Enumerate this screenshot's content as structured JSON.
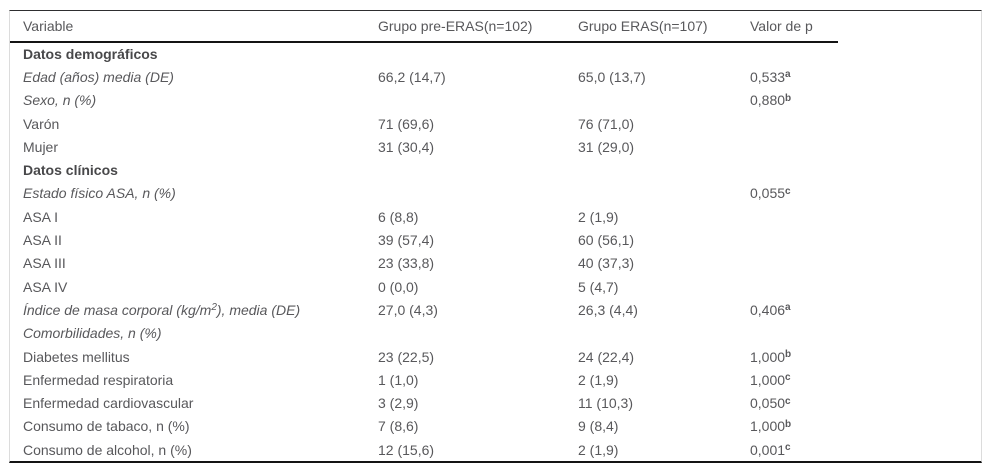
{
  "table": {
    "columns": {
      "variable": "Variable",
      "pre_eras": "Grupo pre-ERAS(n=102)",
      "eras": "Grupo ERAS(n=107)",
      "p_value": "Valor de p"
    },
    "rows": [
      {
        "label": "Datos demográficos",
        "style": "section",
        "pre": "",
        "eras": "",
        "p": "",
        "p_sup": ""
      },
      {
        "label": "Edad (años) media (DE)",
        "style": "italic",
        "pre": "66,2 (14,7)",
        "eras": "65,0 (13,7)",
        "p": "0,533",
        "p_sup": "a"
      },
      {
        "label": "Sexo, n (%)",
        "style": "italic",
        "pre": "",
        "eras": "",
        "p": "0,880",
        "p_sup": "b"
      },
      {
        "label": "Varón",
        "style": "normal",
        "pre": "71 (69,6)",
        "eras": "76 (71,0)",
        "p": "",
        "p_sup": ""
      },
      {
        "label": "Mujer",
        "style": "normal",
        "pre": "31 (30,4)",
        "eras": "31 (29,0)",
        "p": "",
        "p_sup": ""
      },
      {
        "label": "Datos clínicos",
        "style": "section",
        "pre": "",
        "eras": "",
        "p": "",
        "p_sup": ""
      },
      {
        "label": "Estado físico ASA, n (%)",
        "style": "italic",
        "pre": "",
        "eras": "",
        "p": "0,055",
        "p_sup": "c"
      },
      {
        "label": "ASA I",
        "style": "normal",
        "pre": "6 (8,8)",
        "eras": "2 (1,9)",
        "p": "",
        "p_sup": ""
      },
      {
        "label": "ASA II",
        "style": "normal",
        "pre": "39 (57,4)",
        "eras": "60 (56,1)",
        "p": "",
        "p_sup": ""
      },
      {
        "label": "ASA III",
        "style": "normal",
        "pre": "23 (33,8)",
        "eras": "40 (37,3)",
        "p": "",
        "p_sup": ""
      },
      {
        "label": "ASA IV",
        "style": "normal",
        "pre": "0 (0,0)",
        "eras": "5 (4,7)",
        "p": "",
        "p_sup": ""
      },
      {
        "label_parts": [
          "Índice de masa corporal (kg/m",
          "2",
          "), media (DE)"
        ],
        "style": "italic",
        "pre": "27,0 (4,3)",
        "eras": "26,3 (4,4)",
        "p": "0,406",
        "p_sup": "a"
      },
      {
        "label": "Comorbilidades, n (%)",
        "style": "italic",
        "pre": "",
        "eras": "",
        "p": "",
        "p_sup": ""
      },
      {
        "label": "Diabetes mellitus",
        "style": "normal",
        "pre": "23 (22,5)",
        "eras": "24 (22,4)",
        "p": "1,000",
        "p_sup": "b"
      },
      {
        "label": "Enfermedad respiratoria",
        "style": "normal",
        "pre": "1 (1,0)",
        "eras": "2 (1,9)",
        "p": "1,000",
        "p_sup": "c"
      },
      {
        "label": "Enfermedad cardiovascular",
        "style": "normal",
        "pre": "3 (2,9)",
        "eras": "11 (10,3)",
        "p": "0,050",
        "p_sup": "c"
      },
      {
        "label": "Consumo de tabaco, n (%)",
        "style": "normal",
        "pre": "7 (8,6)",
        "eras": "9 (8,4)",
        "p": "1,000",
        "p_sup": "b"
      },
      {
        "label": "Consumo de alcohol, n (%)",
        "style": "normal",
        "pre": "12 (15,6)",
        "eras": "2 (1,9)",
        "p": "0,001",
        "p_sup": "c"
      }
    ],
    "colors": {
      "body_text": "#58585b",
      "section_text": "#48484a",
      "rule_dark": "#141414",
      "outer_border": "#dcdcdc"
    }
  }
}
